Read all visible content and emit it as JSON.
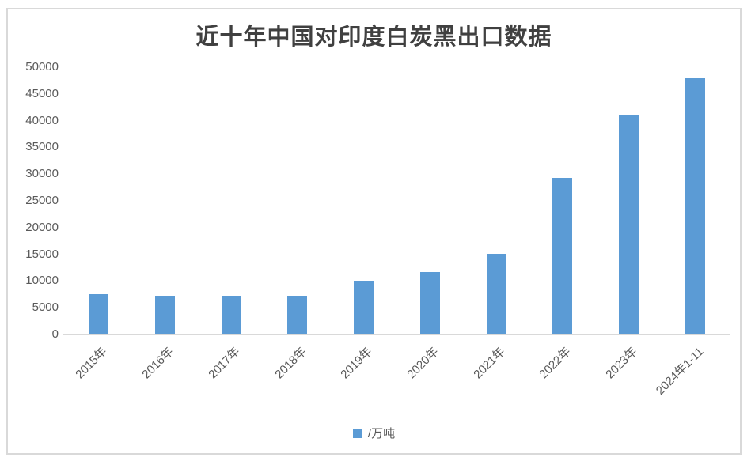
{
  "chart_data": {
    "type": "bar",
    "title": "近十年中国对印度白炭黑出口数据",
    "categories": [
      "2015年",
      "2016年",
      "2017年",
      "2018年",
      "2019年",
      "2020年",
      "2021年",
      "2022年",
      "2023年",
      "2024年1-11"
    ],
    "values": [
      7600,
      7200,
      7300,
      7300,
      10000,
      11700,
      15100,
      29300,
      41000,
      48000
    ],
    "series": [
      {
        "name": "/万吨",
        "values": [
          7600,
          7200,
          7300,
          7300,
          10000,
          11700,
          15100,
          29300,
          41000,
          48000
        ]
      }
    ],
    "legend": {
      "label": "/万吨",
      "position": "bottom"
    },
    "xlabel": "",
    "ylabel": "",
    "ylim": [
      0,
      50000
    ],
    "yticks": [
      0,
      5000,
      10000,
      15000,
      20000,
      25000,
      30000,
      35000,
      40000,
      45000,
      50000
    ],
    "grid": false,
    "x_label_rotation_deg": 45,
    "bar_color": "#5B9BD5",
    "label_color": "#595959",
    "title_color": "#404040",
    "axis_line_color": "#D9D9D9",
    "frame_border_color": "#D9D9D9"
  }
}
